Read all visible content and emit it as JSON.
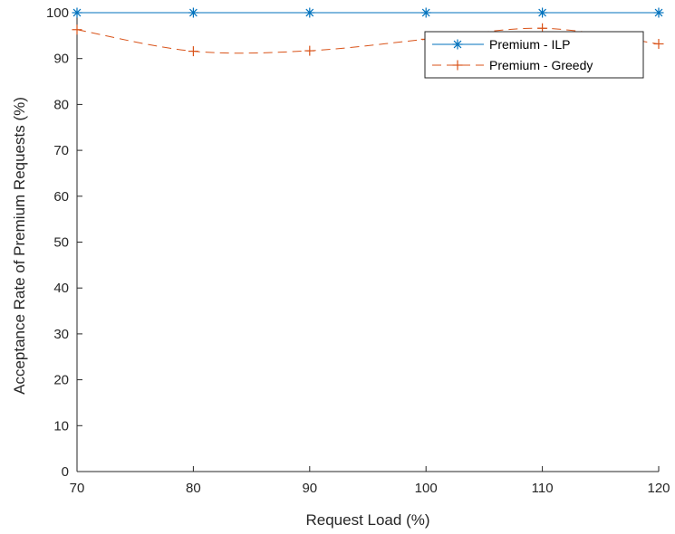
{
  "chart_data": {
    "type": "line",
    "xlabel": "Request Load (%)",
    "ylabel": "Acceptance Rate of Premium Requests (%)",
    "xlim": [
      70,
      120
    ],
    "ylim": [
      0,
      100
    ],
    "xticks": [
      70,
      80,
      90,
      100,
      110,
      120
    ],
    "yticks": [
      0,
      10,
      20,
      30,
      40,
      50,
      60,
      70,
      80,
      90,
      100
    ],
    "grid": false,
    "legend_position": "top-right",
    "x": [
      70,
      80,
      90,
      100,
      110,
      120
    ],
    "series": [
      {
        "name": "Premium - ILP",
        "values": [
          100,
          100,
          100,
          100,
          100,
          100
        ],
        "color": "#0072BD",
        "line_style": "solid",
        "marker": "asterisk"
      },
      {
        "name": "Premium - Greedy",
        "values": [
          96.3,
          91.6,
          91.7,
          94.2,
          96.6,
          93.2
        ],
        "color": "#D95319",
        "line_style": "dashed",
        "marker": "plus"
      }
    ]
  }
}
